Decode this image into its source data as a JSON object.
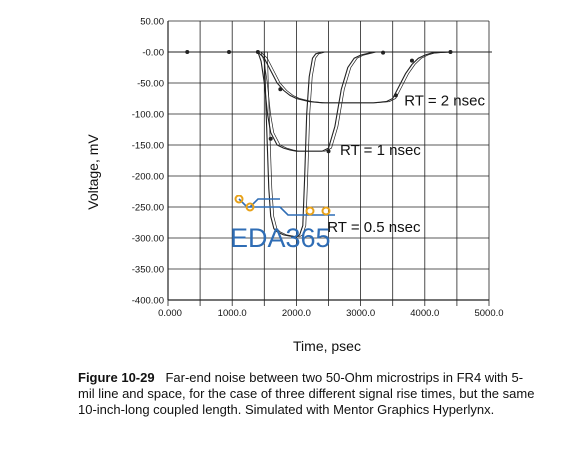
{
  "chart_data": {
    "type": "line",
    "xlabel": "Time, psec",
    "ylabel": "Voltage, mV",
    "xlim": [
      0,
      5000
    ],
    "ylim": [
      -400,
      50
    ],
    "x_ticks": [
      "0.000",
      "1000.0",
      "2000.0",
      "3000.0",
      "4000.0",
      "5000.0"
    ],
    "y_ticks": [
      "50.00",
      "-0.00",
      "-50.00",
      "-100.00",
      "-150.00",
      "-200.00",
      "-250.00",
      "-300.00",
      "-350.00",
      "-400.00"
    ],
    "grid": true,
    "annotations": [
      {
        "text": "RT = 2 nsec",
        "x": 3680,
        "y": -78
      },
      {
        "text": "RT = 1 nsec",
        "x": 2680,
        "y": -158
      },
      {
        "text": "RT = 0.5 nsec",
        "x": 2480,
        "y": -282
      }
    ],
    "series": [
      {
        "x": [
          0,
          1400,
          1500,
          1600,
          1700,
          1800,
          1900,
          2000,
          2200,
          2400,
          2600,
          2800,
          3000,
          3200,
          3400,
          3500,
          3600,
          3700,
          3800,
          3900,
          4000,
          4100,
          4200,
          4400,
          5000
        ],
        "y": [
          0,
          0,
          -10,
          -30,
          -50,
          -62,
          -70,
          -75,
          -80,
          -82,
          -82,
          -82,
          -82,
          -82,
          -80,
          -75,
          -55,
          -35,
          -20,
          -10,
          -5,
          -2,
          -1,
          0,
          0
        ]
      },
      {
        "x": [
          0,
          1400,
          1450,
          1500,
          1550,
          1600,
          1700,
          1800,
          1900,
          2000,
          2100,
          2200,
          2300,
          2400,
          2500,
          2600,
          2700,
          2800,
          2900,
          3000,
          3200,
          5000
        ],
        "y": [
          0,
          0,
          -15,
          -50,
          -100,
          -130,
          -150,
          -155,
          -158,
          -160,
          -160,
          -160,
          -160,
          -160,
          -155,
          -120,
          -60,
          -25,
          -10,
          -5,
          0,
          0
        ]
      },
      {
        "x": [
          0,
          1500,
          1530,
          1570,
          1600,
          1650,
          1700,
          1800,
          1900,
          2000,
          2050,
          2100,
          2130,
          2160,
          2200,
          2250,
          2300,
          2400,
          5000
        ],
        "y": [
          0,
          0,
          -100,
          -220,
          -265,
          -285,
          -290,
          -295,
          -297,
          -298,
          -295,
          -280,
          -200,
          -100,
          -40,
          -10,
          -3,
          0,
          0
        ]
      }
    ]
  },
  "caption": {
    "label": "Figure 10-29",
    "text": "Far-end noise between two 50-Ohm microstrips in FR4 with 5-mil line and space, for the case of three different signal rise times, but the same 10-inch-long coupled length. Simulated with Mentor Graphics Hyperlynx."
  },
  "watermark": {
    "text": "EDA365"
  },
  "colors": {
    "curve": "#222222",
    "grid": "#222222",
    "watermark_blue": "#2f6db5",
    "watermark_orange": "#e8a21a"
  }
}
